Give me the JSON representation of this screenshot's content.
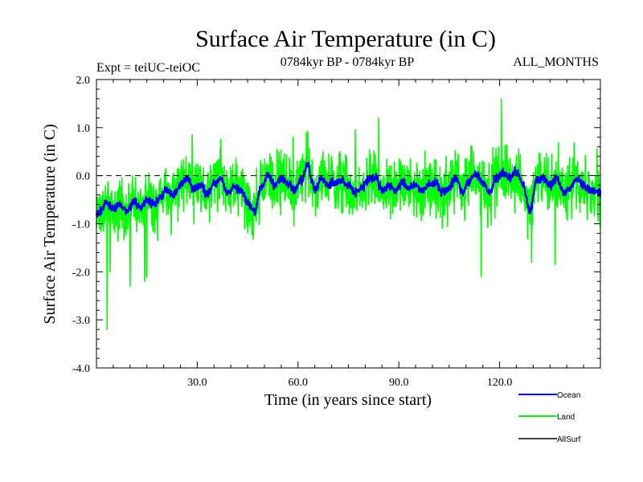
{
  "chart_data": {
    "type": "line",
    "title": "Surface Air Temperature (in C)",
    "subtitle_left": "Expt = teiUC-teiOC",
    "subtitle_center": "0784kyr BP - 0784kyr BP",
    "subtitle_right": "ALL_MONTHS",
    "xlabel": "Time (in years since start)",
    "ylabel": "Surface Air Temperature (in C)",
    "xlim": [
      0,
      150
    ],
    "ylim": [
      -4.0,
      2.0
    ],
    "x_ticks": [
      30,
      60,
      90,
      120
    ],
    "x_tick_labels": [
      "30.0",
      "60.0",
      "90.0",
      "120.0"
    ],
    "y_ticks": [
      2,
      1,
      0,
      -1,
      -2,
      -3,
      -4
    ],
    "y_tick_labels": [
      "2.0",
      "1.0",
      "0.0",
      "-1.0",
      "-2.0",
      "-3.0",
      "-4.0"
    ],
    "reference_line": 0.0,
    "sample_rate_per_year": 12,
    "series": [
      {
        "name": "Ocean",
        "color": "#0000ff",
        "anchors_x": [
          0,
          1,
          3,
          5,
          7,
          9,
          11,
          13,
          15,
          17,
          19,
          21,
          23,
          25,
          27,
          29,
          31,
          33,
          35,
          37,
          39,
          41,
          43,
          45,
          47,
          49,
          51,
          53,
          55,
          57,
          59,
          61,
          63,
          64,
          65,
          67,
          69,
          71,
          73,
          75,
          77,
          79,
          81,
          83,
          85,
          87,
          89,
          91,
          93,
          95,
          97,
          99,
          101,
          103,
          105,
          107,
          109,
          111,
          113,
          115,
          117,
          119,
          121,
          123,
          125,
          127,
          129,
          131,
          133,
          135,
          137,
          139,
          141,
          143,
          145,
          147,
          150
        ],
        "anchors_y": [
          -0.85,
          -0.75,
          -0.55,
          -0.7,
          -0.6,
          -0.75,
          -0.55,
          -0.65,
          -0.5,
          -0.6,
          -0.45,
          -0.3,
          -0.4,
          -0.2,
          -0.05,
          -0.3,
          -0.2,
          -0.4,
          -0.15,
          -0.05,
          -0.35,
          -0.25,
          -0.3,
          -0.55,
          -0.75,
          -0.25,
          0.0,
          -0.2,
          -0.05,
          -0.15,
          -0.3,
          -0.1,
          0.25,
          -0.1,
          -0.3,
          -0.05,
          -0.2,
          -0.15,
          -0.1,
          -0.2,
          -0.35,
          -0.25,
          -0.1,
          -0.05,
          -0.3,
          -0.2,
          -0.3,
          -0.15,
          -0.25,
          -0.2,
          -0.3,
          -0.2,
          -0.15,
          -0.35,
          -0.25,
          -0.05,
          -0.35,
          -0.1,
          0.05,
          -0.15,
          -0.35,
          -0.05,
          0.05,
          -0.05,
          0.1,
          -0.2,
          -0.75,
          -0.1,
          -0.05,
          -0.2,
          -0.05,
          -0.35,
          -0.25,
          -0.05,
          -0.2,
          -0.3,
          -0.35
        ],
        "noise": 0.12
      },
      {
        "name": "Land",
        "color": "#00ff00",
        "spread": 0.42,
        "spikes": [
          {
            "x": 3.2,
            "y": -3.2
          },
          {
            "x": 4.1,
            "y": -2.0
          },
          {
            "x": 10.0,
            "y": -2.3
          },
          {
            "x": 14.3,
            "y": -2.2
          },
          {
            "x": 14.9,
            "y": -2.1
          },
          {
            "x": 28.5,
            "y": 0.85
          },
          {
            "x": 37.0,
            "y": 0.75
          },
          {
            "x": 58.5,
            "y": 0.8
          },
          {
            "x": 62.5,
            "y": 0.9
          },
          {
            "x": 77.0,
            "y": 0.95
          },
          {
            "x": 84.0,
            "y": 1.2
          },
          {
            "x": 114.5,
            "y": -2.1
          },
          {
            "x": 120.5,
            "y": 1.6
          },
          {
            "x": 129.5,
            "y": -1.8
          },
          {
            "x": 136.5,
            "y": -1.85
          },
          {
            "x": 149.0,
            "y": 0.55
          }
        ]
      },
      {
        "name": "AllSurf",
        "color": "#000000",
        "points": []
      }
    ]
  }
}
